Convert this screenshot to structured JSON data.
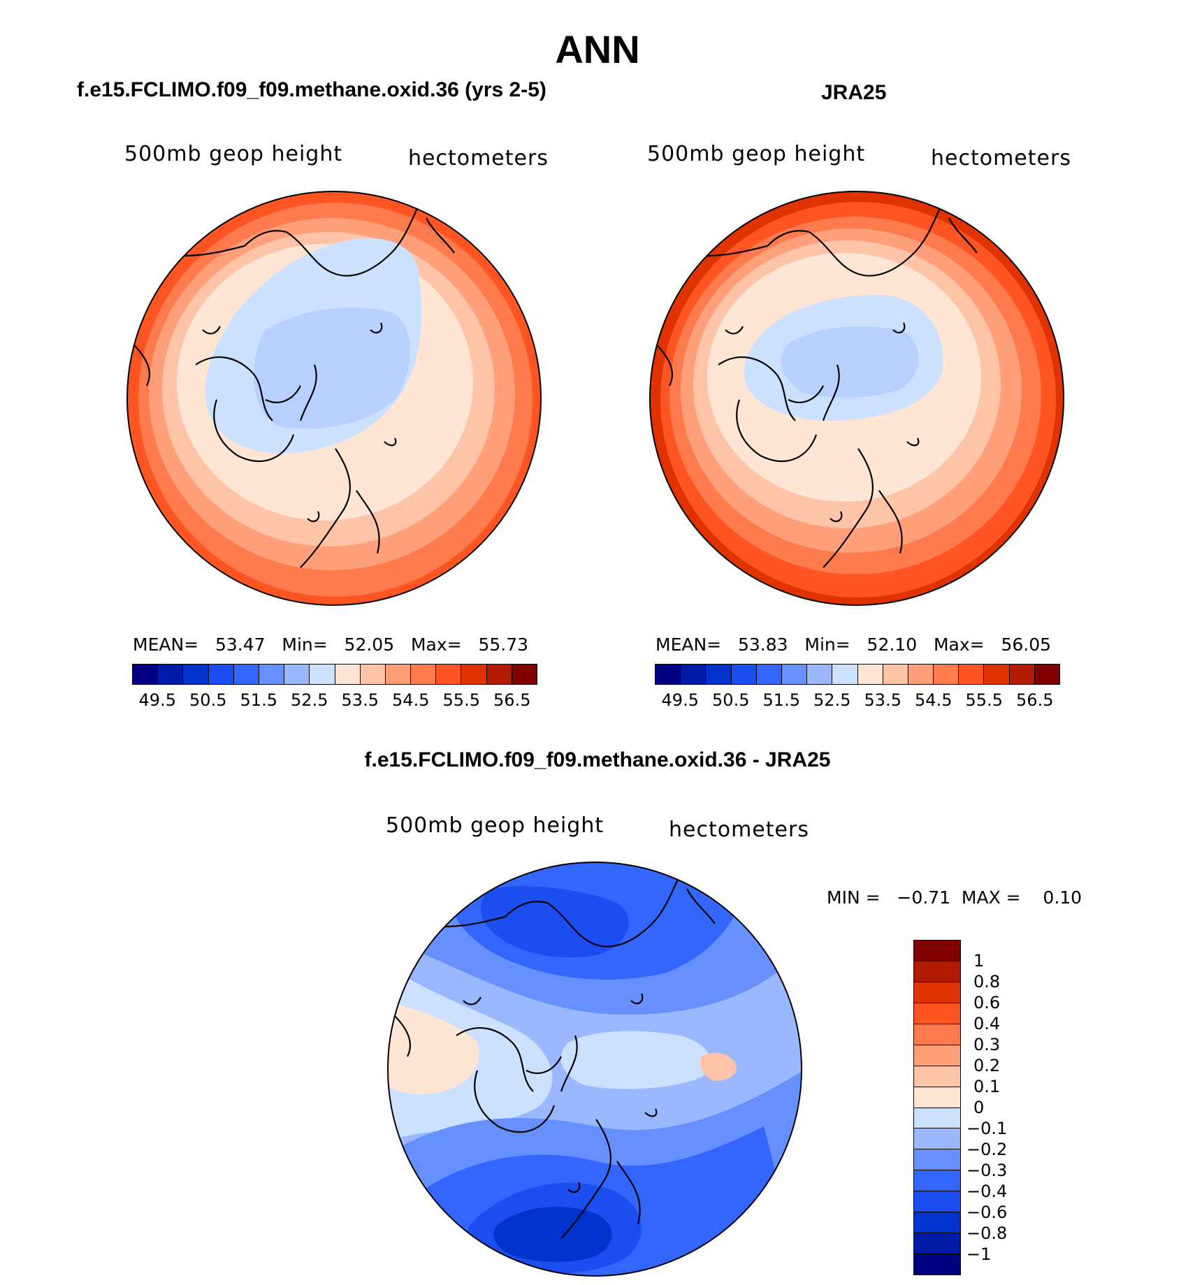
{
  "title": "ANN",
  "panels": [
    {
      "title": "f.e15.FCLIMO.f09_f09.methane.oxid.36 (yrs 2-5)",
      "variable": "500mb geop height",
      "units": "hectometers",
      "stats": {
        "mean_label": "MEAN=",
        "mean": "53.47",
        "min_label": "Min=",
        "min": "52.05",
        "max_label": "Max=",
        "max": "55.73"
      }
    },
    {
      "title": "JRA25",
      "variable": "500mb geop height",
      "units": "hectometers",
      "stats": {
        "mean_label": "MEAN=",
        "mean": "53.83",
        "min_label": "Min=",
        "min": "52.10",
        "max_label": "Max=",
        "max": "56.05"
      }
    },
    {
      "title": "f.e15.FCLIMO.f09_f09.methane.oxid.36 - JRA25",
      "variable": "500mb geop height",
      "units": "hectometers",
      "stats": {
        "min_label": "MIN =",
        "min": "−0.71",
        "max_label": "MAX =",
        "max": "0.10"
      }
    }
  ],
  "colorbar_field": {
    "colors": [
      "#000080",
      "#001aa8",
      "#0033cc",
      "#1a4ef0",
      "#3366ff",
      "#6690ff",
      "#99b8ff",
      "#cce0ff",
      "#ffe6d4",
      "#ffc4a8",
      "#ffa07a",
      "#ff7a4d",
      "#ff5522",
      "#e03300",
      "#b01a00",
      "#800000"
    ],
    "labels": [
      "49.5",
      "50.5",
      "51.5",
      "52.5",
      "53.5",
      "54.5",
      "55.5",
      "56.5"
    ]
  },
  "colorbar_diff": {
    "colors_top_to_bottom": [
      "#800000",
      "#b01a00",
      "#e03300",
      "#ff5522",
      "#ff7a4d",
      "#ffa07a",
      "#ffc4a8",
      "#ffe6d4",
      "#cce0ff",
      "#99b8ff",
      "#6690ff",
      "#3366ff",
      "#1a4ef0",
      "#0033cc",
      "#001aa8",
      "#000080"
    ],
    "labels": [
      "1",
      "0.8",
      "0.6",
      "0.4",
      "0.3",
      "0.2",
      "0.1",
      "0",
      "−0.1",
      "−0.2",
      "−0.3",
      "−0.4",
      "−0.6",
      "−0.8",
      "−1"
    ]
  },
  "chart_data": [
    {
      "type": "heatmap",
      "projection": "north polar stereographic",
      "title": "f.e15.FCLIMO.f09_f09.methane.oxid.36 (yrs 2-5)",
      "field": "500mb geop height",
      "units": "hectometers",
      "mean": 53.47,
      "min": 52.05,
      "max": 55.73,
      "contour_levels": [
        49.5,
        50.0,
        50.5,
        51.0,
        51.5,
        52.0,
        52.5,
        53.0,
        53.5,
        54.0,
        54.5,
        55.0,
        55.5,
        56.0,
        56.5
      ]
    },
    {
      "type": "heatmap",
      "projection": "north polar stereographic",
      "title": "JRA25",
      "field": "500mb geop height",
      "units": "hectometers",
      "mean": 53.83,
      "min": 52.1,
      "max": 56.05,
      "contour_levels": [
        49.5,
        50.0,
        50.5,
        51.0,
        51.5,
        52.0,
        52.5,
        53.0,
        53.5,
        54.0,
        54.5,
        55.0,
        55.5,
        56.0,
        56.5
      ]
    },
    {
      "type": "heatmap",
      "projection": "north polar stereographic",
      "title": "f.e15.FCLIMO.f09_f09.methane.oxid.36 - JRA25",
      "field": "500mb geop height",
      "units": "hectometers",
      "min": -0.71,
      "max": 0.1,
      "contour_levels": [
        -1,
        -0.8,
        -0.6,
        -0.4,
        -0.3,
        -0.2,
        -0.1,
        0,
        0.1,
        0.2,
        0.3,
        0.4,
        0.6,
        0.8,
        1
      ]
    }
  ]
}
